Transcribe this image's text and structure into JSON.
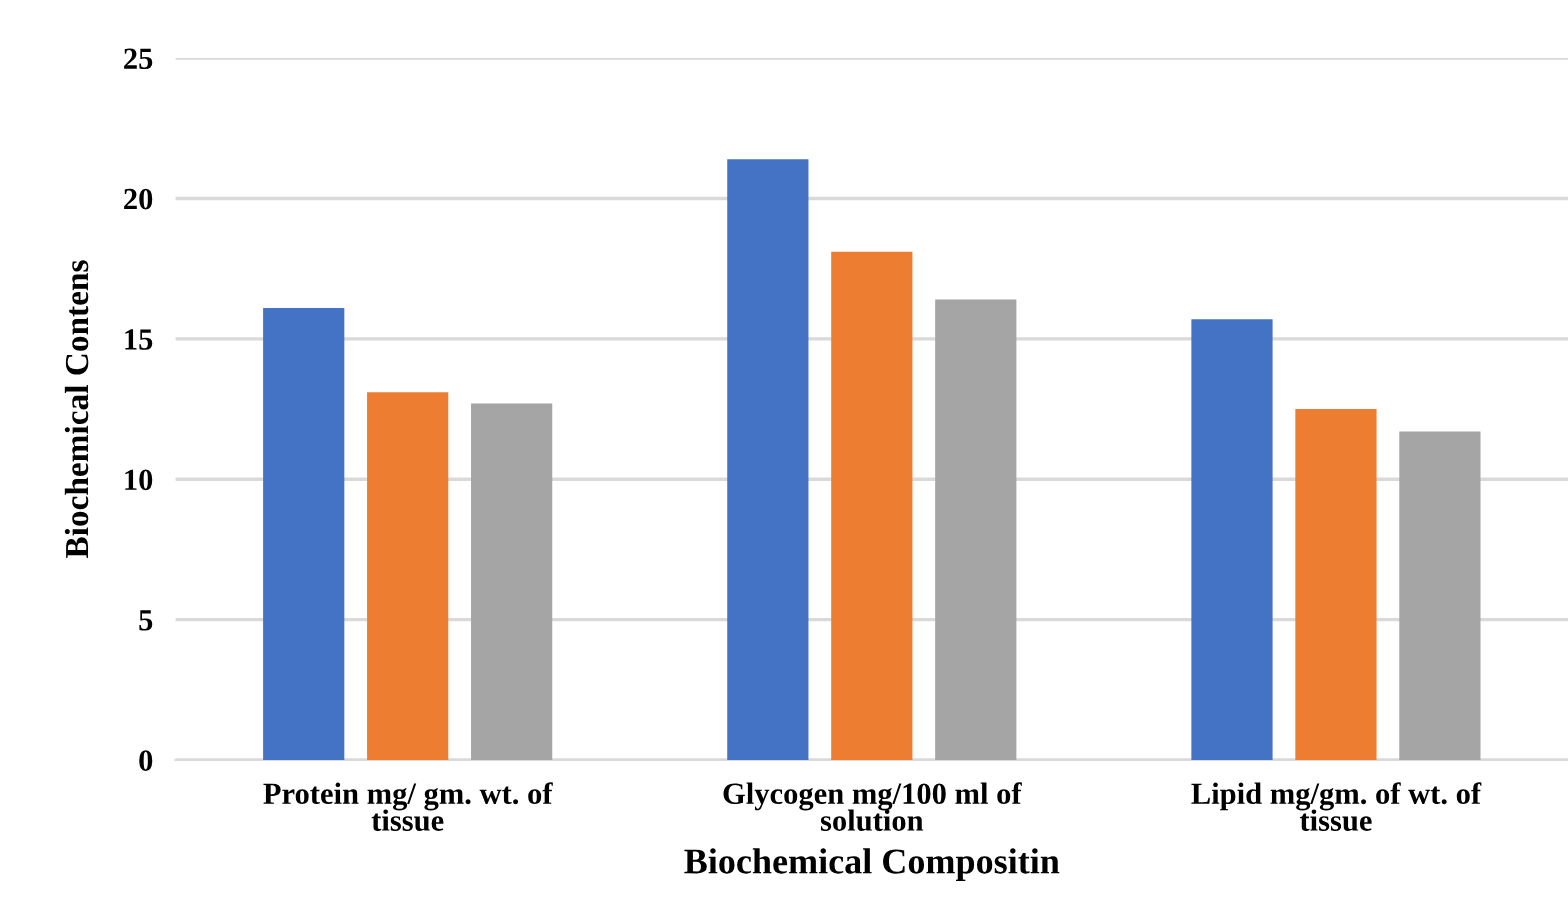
{
  "chart_data": {
    "type": "bar",
    "xlabel": "Biochemical Compositin",
    "ylabel": "Biochemical Contens",
    "categories": [
      "Protein mg/ gm. wt. of tissue",
      "Glycogen mg/100 ml of solution",
      "Lipid mg/gm. of wt. of tissue"
    ],
    "series": [
      {
        "color": "#4472c4",
        "values": [
          16.1,
          21.4,
          15.7
        ]
      },
      {
        "color": "#ed7d31",
        "values": [
          13.1,
          18.1,
          12.5
        ]
      },
      {
        "color": "#a5a5a5",
        "values": [
          12.7,
          16.4,
          11.7
        ]
      }
    ],
    "ylim": [
      0,
      25
    ],
    "yticks": [
      0,
      5,
      10,
      15,
      20,
      25
    ],
    "grid": "y",
    "legend": false
  }
}
